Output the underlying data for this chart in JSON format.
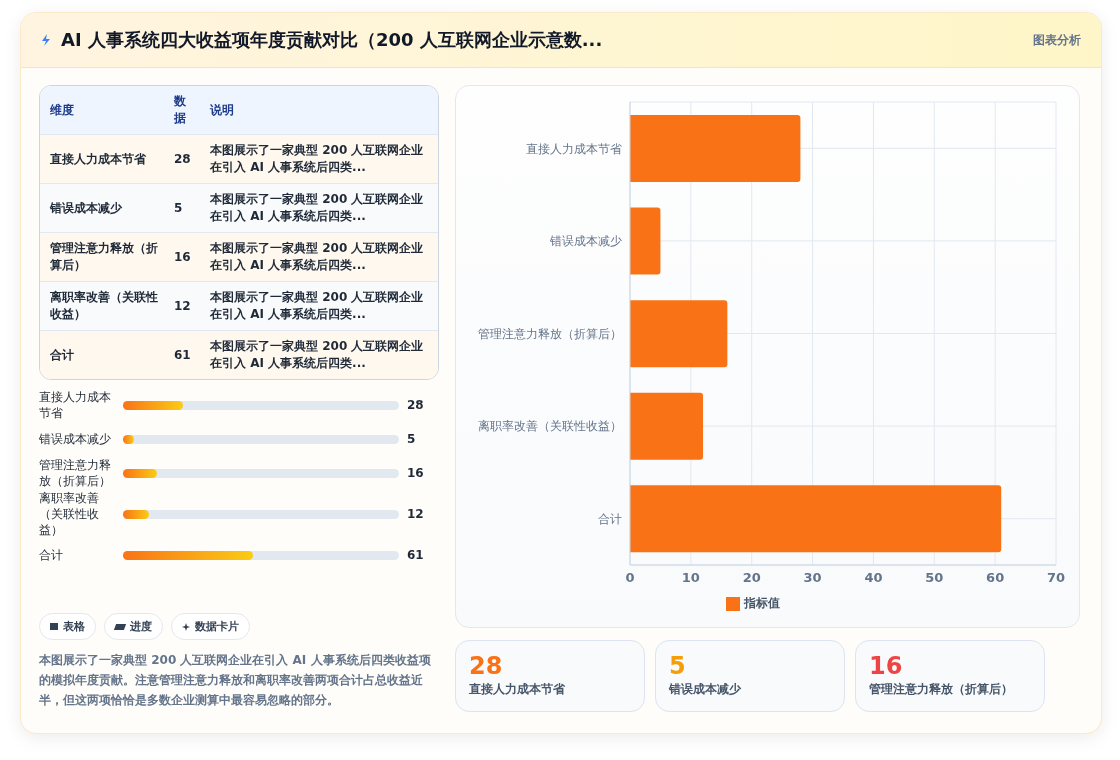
{
  "chart_data": [
    {
      "type": "bar",
      "orientation": "horizontal",
      "title": "AI 人事系统四大收益项年度贡献对比（200 人互联网企业示意数...",
      "categories": [
        "直接人力成本节省",
        "错误成本减少",
        "管理注意力释放（折算后）",
        "离职率改善（关联性收益）",
        "合计"
      ],
      "series": [
        {
          "name": "指标值",
          "color": "#f97316",
          "values": [
            28,
            5,
            16,
            12,
            61
          ]
        }
      ],
      "xlim": [
        0,
        70
      ],
      "xticks": [
        0,
        10,
        20,
        30,
        40,
        50,
        60,
        70
      ],
      "grid": true,
      "legend": "bottom",
      "annotations": [
        "图表分析",
        "表格",
        "进度",
        "数据卡片",
        "本图展示了一家典型 200 人互联网企业在引入 AI 人事系统后四类收益项的模拟年度贡献。注意管理注意力释放和离职率改善两项合计占总收益近半，但这两项恰恰是多数企业测算中最容易忽略的部分。"
      ]
    },
    {
      "type": "other",
      "categories": [
        "直接人力成本节省",
        "错误成本减少",
        "管理注意力释放（折算后）",
        "离职率改善（关联性收益）",
        "合计"
      ],
      "values": [
        28,
        5,
        16,
        12,
        61
      ],
      "data_labels": true,
      "annotations": [
        "维度",
        "数据",
        "说明",
        "本图展示了一家典型 200 人互联网企业在引入 AI 人事系统后四类..."
      ]
    },
    {
      "type": "other",
      "categories": [
        "直接人力成本节省",
        "错误成本减少",
        "管理注意力释放（折算后）",
        "离职率改善（关联性收益）",
        "合计"
      ],
      "series": [
        {
          "color": "#f97316",
          "values": [
            28,
            5,
            16,
            12,
            61
          ]
        }
      ],
      "data_labels": true
    },
    {
      "type": "other",
      "categories": [
        "直接人力成本节省",
        "错误成本减少",
        "管理注意力释放（折算后）"
      ],
      "values": [
        28,
        5,
        16
      ],
      "data_labels": true
    }
  ]
}
